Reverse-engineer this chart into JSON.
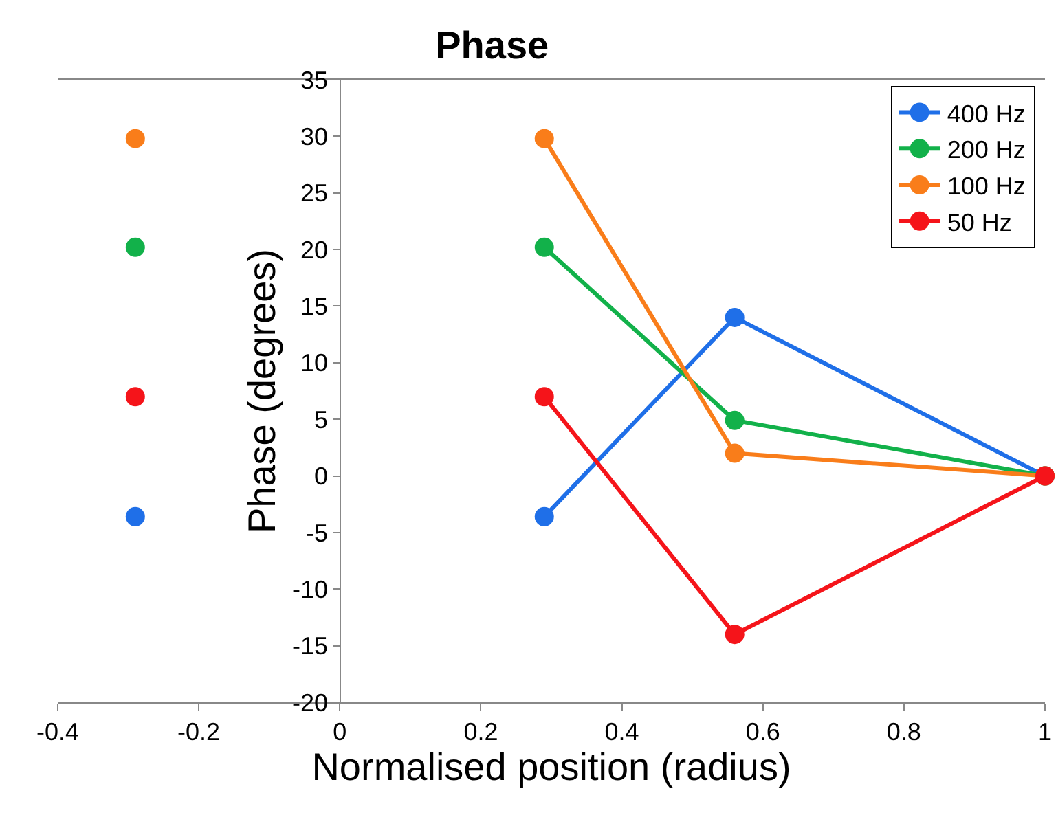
{
  "chart_data": {
    "type": "line",
    "title": "Phase",
    "xlabel": "Normalised position (radius)",
    "ylabel": "Phase (degrees)",
    "x": [
      -0.29,
      0,
      0.29,
      0.56,
      1
    ],
    "series": [
      {
        "name": "400 Hz",
        "color": "#1f6fe8",
        "values": [
          -3.6,
          null,
          -3.6,
          14,
          0
        ]
      },
      {
        "name": "200 Hz",
        "color": "#12b14a",
        "values": [
          20.2,
          null,
          20.2,
          4.9,
          0
        ]
      },
      {
        "name": "100 Hz",
        "color": "#f97d1a",
        "values": [
          29.8,
          null,
          29.8,
          2,
          0
        ]
      },
      {
        "name": "50 Hz",
        "color": "#f5141a",
        "values": [
          7,
          null,
          7,
          -14,
          0
        ]
      }
    ],
    "xlim": [
      -0.4,
      1
    ],
    "xticks": [
      -0.4,
      -0.2,
      0,
      0.2,
      0.4,
      0.6,
      0.8,
      1
    ],
    "ylim": [
      -20,
      35
    ],
    "yticks": [
      -20,
      -15,
      -10,
      -5,
      0,
      5,
      10,
      15,
      20,
      25,
      30,
      35
    ],
    "grid": false,
    "legend": "top right",
    "marker": "circle",
    "line_style": "solid"
  }
}
